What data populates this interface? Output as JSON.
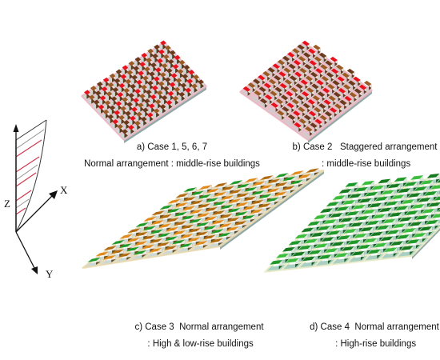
{
  "axes": {
    "z": "Z",
    "x": "X",
    "y": "Y"
  },
  "panels": [
    {
      "id": "a",
      "caption": [
        "a) Case 1, 5, 6, 7",
        "Normal arrangement : middle-rise buildings"
      ],
      "arrangement": "normal",
      "ground": "#c9d8d6",
      "street": "#f4b8c6",
      "building_tops": [
        "#e8121c",
        "#9a5a24",
        "#6b3a1c"
      ],
      "building_side": "#5c3b1f"
    },
    {
      "id": "b",
      "caption": [
        "b) Case 2   Staggered arrangement",
        " : middle-rise buildings"
      ],
      "arrangement": "staggered",
      "ground": "#d6c9cc",
      "street": "#f4b8c6",
      "building_tops": [
        "#e8121c",
        "#9a5a24",
        "#6b3a1c"
      ],
      "building_side": "#5c3b1f"
    },
    {
      "id": "c",
      "caption": [
        "c) Case 3  Normal arrangement",
        " : High & low-rise buildings"
      ],
      "arrangement": "normal",
      "ground": "#c9d8d6",
      "street": "#f2ddb0",
      "building_tops": [
        "#1f9a2a",
        "#e08a1c",
        "#b06a10"
      ],
      "building_side": "#6a4a14"
    },
    {
      "id": "d",
      "caption": [
        "d) Case 4  Normal arrangement",
        " : High-rise buildings"
      ],
      "arrangement": "normal",
      "ground": "#a9cfc2",
      "street": "#f4f2cc",
      "building_tops": [
        "#1f9a2a",
        "#3dbd3e",
        "#177a20"
      ],
      "building_side": "#145c1a"
    }
  ]
}
